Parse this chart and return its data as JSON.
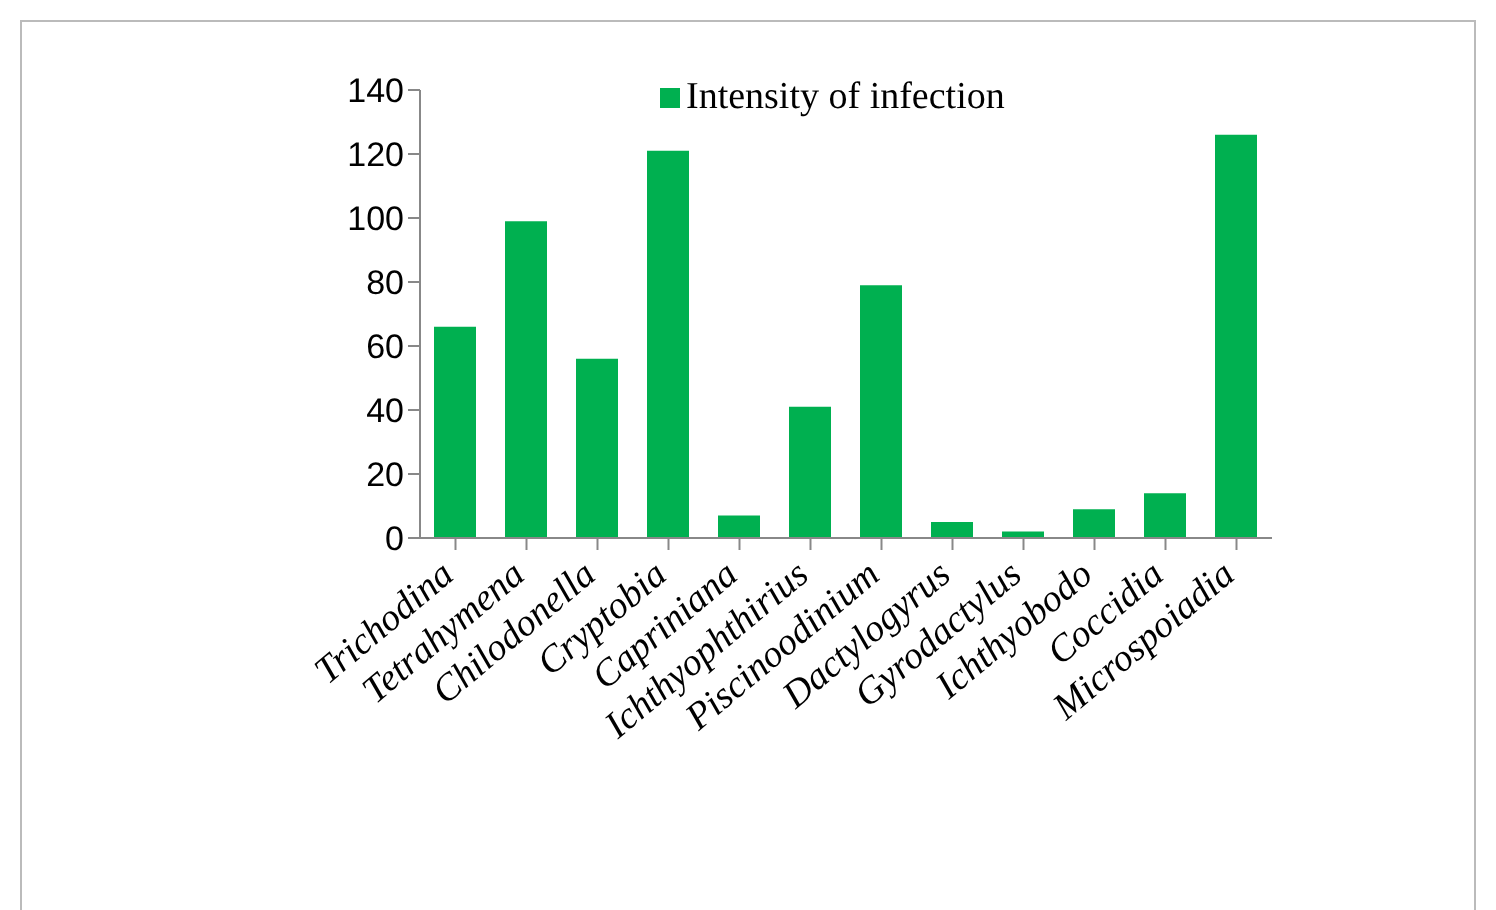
{
  "chart_data": {
    "type": "bar",
    "categories": [
      "Trichodina",
      "Tetrahymena",
      "Chilodonella",
      "Cryptobia",
      "Capriniana",
      "Ichthyophthirius",
      "Piscinoodinium",
      "Dactylogyrus",
      "Gyrodactylus",
      "Ichthyobodo",
      "Coccidia",
      "Microspoiadia"
    ],
    "series": [
      {
        "name": "Intensity of infection",
        "color": "#00b050",
        "values": [
          66,
          99,
          56,
          121,
          7,
          41,
          79,
          5,
          2,
          9,
          14,
          126
        ]
      }
    ],
    "ylim": [
      0,
      140
    ],
    "yticks": [
      0,
      20,
      40,
      60,
      80,
      100,
      120,
      140
    ],
    "grid": false,
    "legend": "top"
  }
}
